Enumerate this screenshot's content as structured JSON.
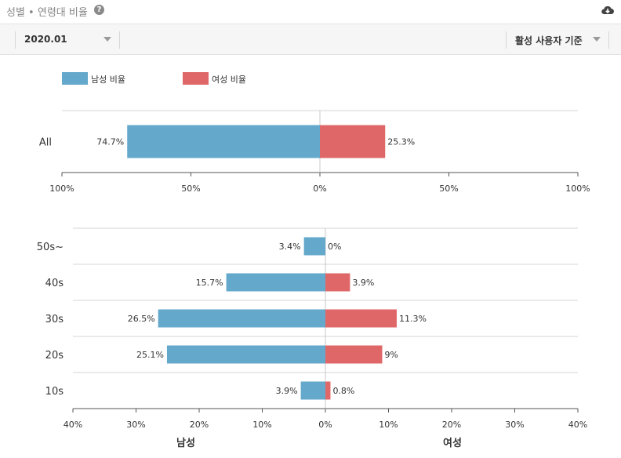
{
  "header": {
    "title": "성별 • 연령대 비율",
    "help_icon": "?"
  },
  "toolbar": {
    "date_value": "2020.01",
    "basis_value": "활성 사용자 기준"
  },
  "legend": [
    {
      "label": "남성 비율",
      "color": "#64a8cb"
    },
    {
      "label": "여성 비율",
      "color": "#e06767"
    }
  ],
  "chart_data": [
    {
      "type": "bar",
      "orientation": "horizontal-diverging",
      "categories": [
        "All"
      ],
      "series": [
        {
          "name": "남성 비율",
          "values": [
            74.7
          ],
          "labels": [
            "74.7%"
          ],
          "color": "#64a8cb"
        },
        {
          "name": "여성 비율",
          "values": [
            25.3
          ],
          "labels": [
            "25.3%"
          ],
          "color": "#e06767"
        }
      ],
      "xlim": [
        -100,
        100
      ],
      "xticks": [
        "100%",
        "50%",
        "0%",
        "50%",
        "100%"
      ]
    },
    {
      "type": "bar",
      "orientation": "horizontal-diverging",
      "categories": [
        "50s~",
        "40s",
        "30s",
        "20s",
        "10s"
      ],
      "series": [
        {
          "name": "남성 비율",
          "values": [
            3.4,
            15.7,
            26.5,
            25.1,
            3.9
          ],
          "labels": [
            "3.4%",
            "15.7%",
            "26.5%",
            "25.1%",
            "3.9%"
          ],
          "color": "#64a8cb"
        },
        {
          "name": "여성 비율",
          "values": [
            0,
            3.9,
            11.3,
            9,
            0.8
          ],
          "labels": [
            "0%",
            "3.9%",
            "11.3%",
            "9%",
            "0.8%"
          ],
          "color": "#e06767"
        }
      ],
      "xlim": [
        -40,
        40
      ],
      "xticks": [
        "40%",
        "30%",
        "20%",
        "10%",
        "0%",
        "10%",
        "20%",
        "30%",
        "40%"
      ],
      "xlabel_left": "남성",
      "xlabel_right": "여성"
    }
  ]
}
